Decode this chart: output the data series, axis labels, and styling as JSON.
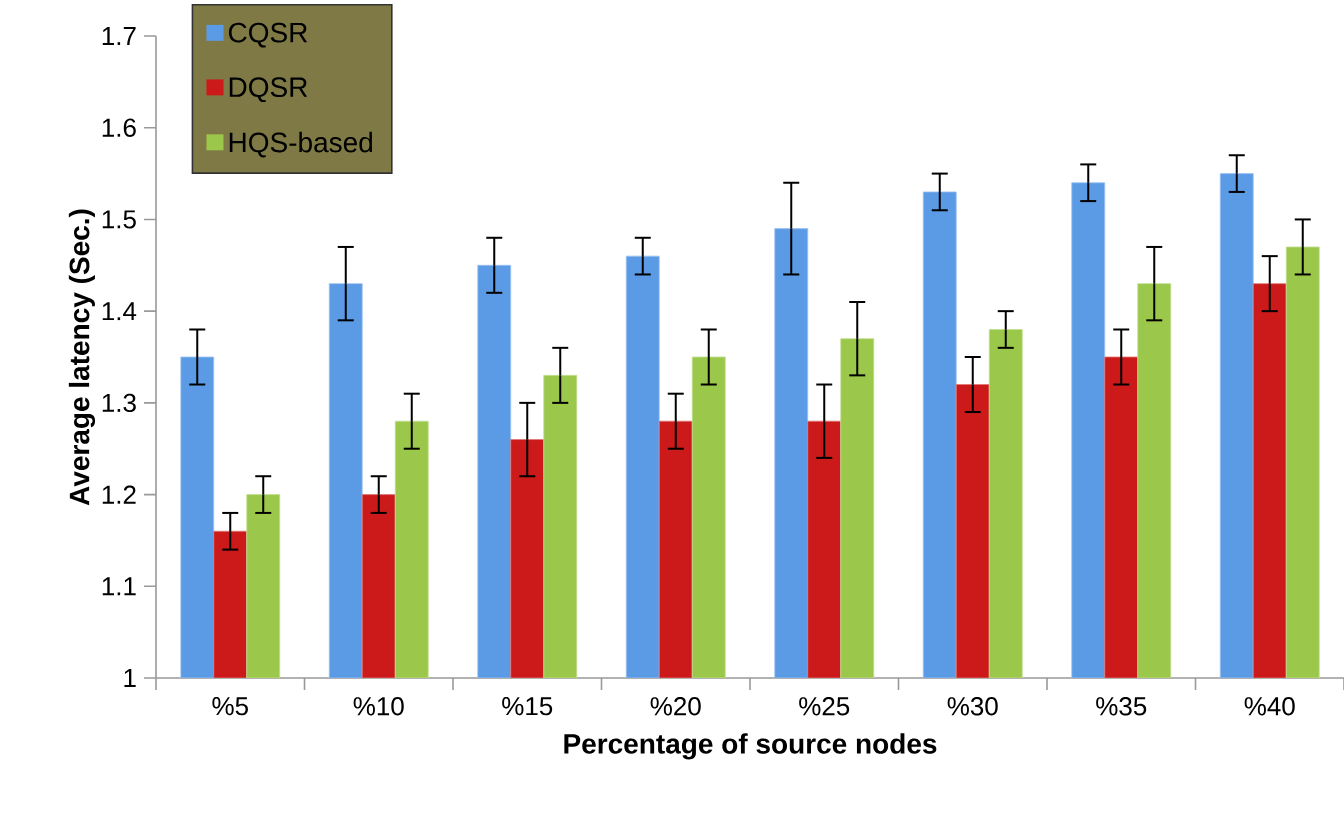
{
  "chart_data": {
    "type": "bar",
    "xlabel": "Percentage of source nodes",
    "ylabel": "Average latency (Sec.)",
    "categories": [
      "%5",
      "%10",
      "%15",
      "%20",
      "%25",
      "%30",
      "%35",
      "%40"
    ],
    "series": [
      {
        "name": "CQSR",
        "color": "#5b9be6",
        "values": [
          1.35,
          1.43,
          1.45,
          1.46,
          1.49,
          1.53,
          1.54,
          1.55
        ],
        "errors": [
          0.03,
          0.04,
          0.03,
          0.02,
          0.05,
          0.02,
          0.02,
          0.02
        ]
      },
      {
        "name": "DQSR",
        "color": "#cc1a1a",
        "values": [
          1.16,
          1.2,
          1.26,
          1.28,
          1.28,
          1.32,
          1.35,
          1.43
        ],
        "errors": [
          0.02,
          0.02,
          0.04,
          0.03,
          0.04,
          0.03,
          0.03,
          0.03
        ]
      },
      {
        "name": "HQS-based",
        "color": "#9bc84a",
        "values": [
          1.2,
          1.28,
          1.33,
          1.35,
          1.37,
          1.38,
          1.43,
          1.47
        ],
        "errors": [
          0.02,
          0.03,
          0.03,
          0.03,
          0.04,
          0.02,
          0.04,
          0.03
        ]
      }
    ],
    "ylim": [
      1,
      1.7
    ],
    "yticks": [
      1,
      1.1,
      1.2,
      1.3,
      1.4,
      1.5,
      1.6,
      1.7
    ],
    "legend": "top left",
    "grid": false
  }
}
